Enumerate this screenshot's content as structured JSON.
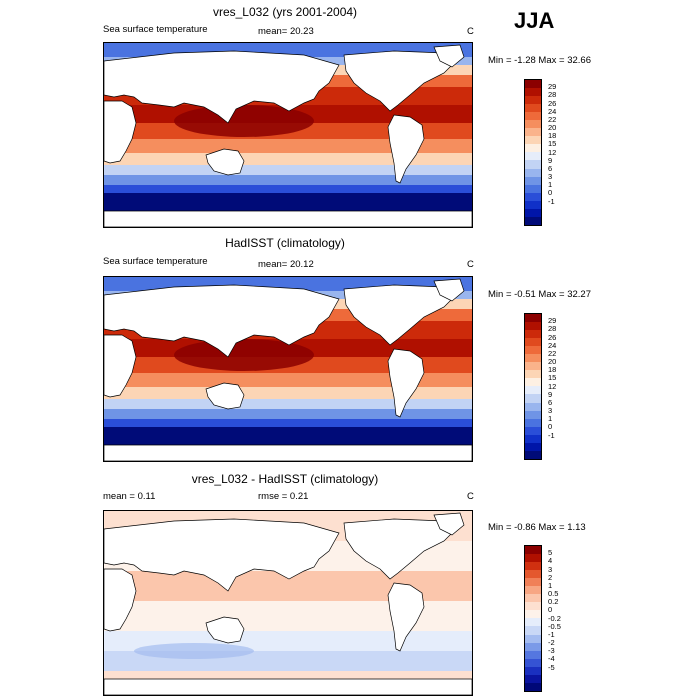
{
  "season": "JJA",
  "panels": [
    {
      "title": "vres_L032 (yrs 2001-2004)",
      "left_label": "Sea surface temperature",
      "mean_label": "mean=  20.23",
      "units": "C",
      "minmax": "Min =  -1.28 Max =  32.66",
      "kind": "sst",
      "cbar_colors": [
        "#8b0000",
        "#b01000",
        "#cc2a0a",
        "#e04a1e",
        "#ee6a3a",
        "#f58e5e",
        "#fab38b",
        "#fcd5b5",
        "#fdf0e3",
        "#e6edfa",
        "#c2d3f4",
        "#99b5ee",
        "#6f94e6",
        "#4a73e0",
        "#2a4ed8",
        "#1030c8",
        "#0015a8",
        "#000b78"
      ],
      "cbar_labels": [
        "29",
        "28",
        "26",
        "24",
        "22",
        "20",
        "18",
        "15",
        "12",
        "9",
        "6",
        "3",
        "1",
        "0",
        "-1"
      ]
    },
    {
      "title": "HadISST (climatology)",
      "left_label": "Sea surface temperature",
      "mean_label": "mean=  20.12",
      "units": "C",
      "minmax": "Min =  -0.51 Max =  32.27",
      "kind": "sst",
      "cbar_colors": [
        "#8b0000",
        "#b01000",
        "#cc2a0a",
        "#e04a1e",
        "#ee6a3a",
        "#f58e5e",
        "#fab38b",
        "#fcd5b5",
        "#fdf0e3",
        "#e6edfa",
        "#c2d3f4",
        "#99b5ee",
        "#6f94e6",
        "#4a73e0",
        "#2a4ed8",
        "#1030c8",
        "#0015a8",
        "#000b78"
      ],
      "cbar_labels": [
        "29",
        "28",
        "26",
        "24",
        "22",
        "20",
        "18",
        "15",
        "12",
        "9",
        "6",
        "3",
        "1",
        "0",
        "-1"
      ]
    },
    {
      "title": "vres_L032 - HadISST (climatology)",
      "left_label": "mean =   0.11",
      "mean_label": "rmse =   0.21",
      "units": "C",
      "minmax": "Min =  -0.86 Max =  1.13",
      "kind": "diff",
      "cbar_colors": [
        "#8b0000",
        "#b01000",
        "#d03010",
        "#e4582e",
        "#f08058",
        "#f7a683",
        "#fbc6ac",
        "#fde0d0",
        "#fdf2ea",
        "#e5edfb",
        "#c9d8f6",
        "#a4bcf0",
        "#7b9ae8",
        "#5577e0",
        "#3553d4",
        "#1a30c0",
        "#0a14a0",
        "#000878"
      ],
      "cbar_labels": [
        "5",
        "4",
        "3",
        "2",
        "1",
        "0.5",
        "0.2",
        "0",
        "-0.2",
        "-0.5",
        "-1",
        "-2",
        "-3",
        "-4",
        "-5"
      ]
    }
  ],
  "chart_data": [
    {
      "type": "heatmap",
      "title": "vres_L032 (yrs 2001-2004)",
      "variable": "Sea surface temperature",
      "units": "C",
      "mean": 20.23,
      "min": -1.28,
      "max": 32.66,
      "levels": [
        -1,
        0,
        1,
        3,
        6,
        9,
        12,
        15,
        18,
        20,
        22,
        24,
        26,
        28,
        29
      ]
    },
    {
      "type": "heatmap",
      "title": "HadISST (climatology)",
      "variable": "Sea surface temperature",
      "units": "C",
      "mean": 20.12,
      "min": -0.51,
      "max": 32.27,
      "levels": [
        -1,
        0,
        1,
        3,
        6,
        9,
        12,
        15,
        18,
        20,
        22,
        24,
        26,
        28,
        29
      ]
    },
    {
      "type": "heatmap",
      "title": "vres_L032 - HadISST (climatology)",
      "units": "C",
      "mean": 0.11,
      "rmse": 0.21,
      "min": -0.86,
      "max": 1.13,
      "levels": [
        -5,
        -4,
        -3,
        -2,
        -1,
        -0.5,
        -0.2,
        0,
        0.2,
        0.5,
        1,
        2,
        3,
        4,
        5
      ]
    }
  ]
}
